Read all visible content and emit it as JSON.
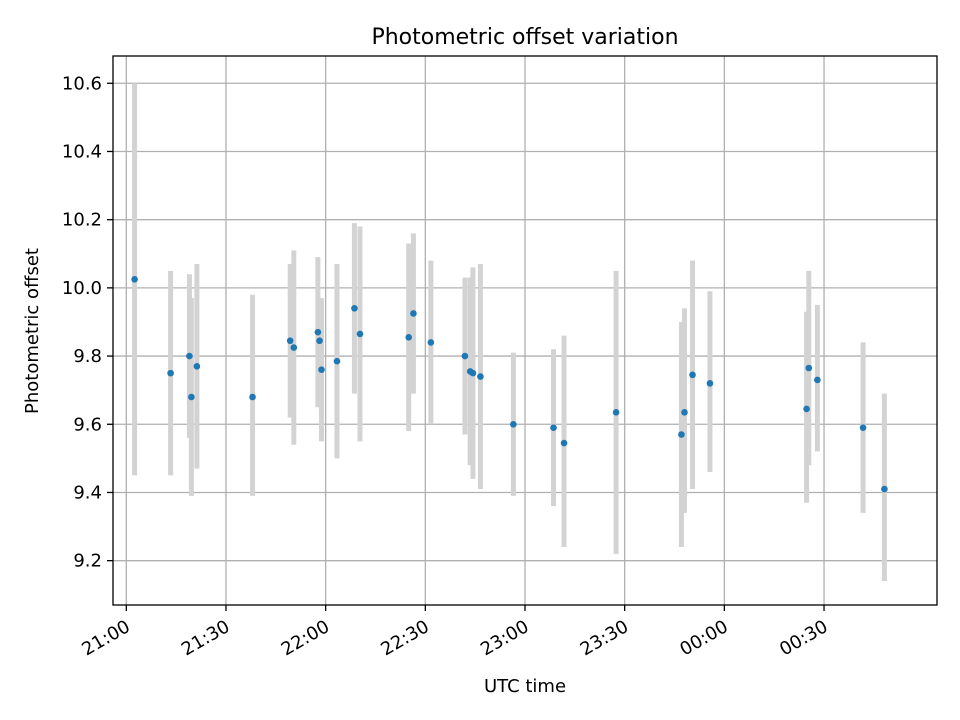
{
  "chart_data": {
    "type": "scatter",
    "title": "Photometric offset variation",
    "xlabel": "UTC time",
    "ylabel": "Photometric offset",
    "xlim": [
      "2000-01-01T20:56:00",
      "2000-01-02T01:04:00"
    ],
    "ylim": [
      9.07,
      10.68
    ],
    "grid": true,
    "x_ticks": [
      {
        "value": "2000-01-01T21:00:00",
        "label": "21:00"
      },
      {
        "value": "2000-01-01T21:30:00",
        "label": "21:30"
      },
      {
        "value": "2000-01-01T22:00:00",
        "label": "22:00"
      },
      {
        "value": "2000-01-01T22:30:00",
        "label": "22:30"
      },
      {
        "value": "2000-01-01T23:00:00",
        "label": "23:00"
      },
      {
        "value": "2000-01-01T23:30:00",
        "label": "23:30"
      },
      {
        "value": "2000-01-02T00:00:00",
        "label": "00:00"
      },
      {
        "value": "2000-01-02T00:30:00",
        "label": "00:30"
      }
    ],
    "y_ticks": [
      {
        "value": 9.2,
        "label": "9.2"
      },
      {
        "value": 9.4,
        "label": "9.4"
      },
      {
        "value": 9.6,
        "label": "9.6"
      },
      {
        "value": 9.8,
        "label": "9.8"
      },
      {
        "value": 10.0,
        "label": "10.0"
      },
      {
        "value": 10.2,
        "label": "10.2"
      },
      {
        "value": 10.4,
        "label": "10.4"
      },
      {
        "value": 10.6,
        "label": "10.6"
      }
    ],
    "colors": {
      "point": "#1f77b4",
      "errorbar": "#d3d3d3",
      "grid": "#b0b0b0"
    },
    "points": [
      {
        "x": "2000-01-01T21:02:30",
        "y": 10.025,
        "ylo": 9.45,
        "yhi": 10.6
      },
      {
        "x": "2000-01-01T21:13:20",
        "y": 9.75,
        "ylo": 9.45,
        "yhi": 10.05
      },
      {
        "x": "2000-01-01T21:19:00",
        "y": 9.8,
        "ylo": 9.56,
        "yhi": 10.04
      },
      {
        "x": "2000-01-01T21:19:35",
        "y": 9.68,
        "ylo": 9.39,
        "yhi": 9.97
      },
      {
        "x": "2000-01-01T21:21:15",
        "y": 9.77,
        "ylo": 9.47,
        "yhi": 10.07
      },
      {
        "x": "2000-01-01T21:38:00",
        "y": 9.68,
        "ylo": 9.39,
        "yhi": 9.98
      },
      {
        "x": "2000-01-01T21:49:20",
        "y": 9.845,
        "ylo": 9.62,
        "yhi": 10.07
      },
      {
        "x": "2000-01-01T21:50:25",
        "y": 9.825,
        "ylo": 9.54,
        "yhi": 10.11
      },
      {
        "x": "2000-01-01T21:57:40",
        "y": 9.87,
        "ylo": 9.65,
        "yhi": 10.09
      },
      {
        "x": "2000-01-01T21:58:10",
        "y": 9.845,
        "ylo": 9.72,
        "yhi": 9.97
      },
      {
        "x": "2000-01-01T21:58:45",
        "y": 9.76,
        "ylo": 9.55,
        "yhi": 9.97
      },
      {
        "x": "2000-01-01T22:03:25",
        "y": 9.785,
        "ylo": 9.5,
        "yhi": 10.07
      },
      {
        "x": "2000-01-01T22:08:40",
        "y": 9.94,
        "ylo": 9.69,
        "yhi": 10.19
      },
      {
        "x": "2000-01-01T22:10:20",
        "y": 9.865,
        "ylo": 9.55,
        "yhi": 10.18
      },
      {
        "x": "2000-01-01T22:25:00",
        "y": 9.855,
        "ylo": 9.58,
        "yhi": 10.13
      },
      {
        "x": "2000-01-01T22:26:25",
        "y": 9.925,
        "ylo": 9.69,
        "yhi": 10.16
      },
      {
        "x": "2000-01-01T22:31:40",
        "y": 9.84,
        "ylo": 9.6,
        "yhi": 10.08
      },
      {
        "x": "2000-01-01T22:41:55",
        "y": 9.8,
        "ylo": 9.57,
        "yhi": 10.03
      },
      {
        "x": "2000-01-01T22:43:30",
        "y": 9.755,
        "ylo": 9.48,
        "yhi": 10.03
      },
      {
        "x": "2000-01-01T22:44:20",
        "y": 9.75,
        "ylo": 9.44,
        "yhi": 10.06
      },
      {
        "x": "2000-01-01T22:46:35",
        "y": 9.74,
        "ylo": 9.41,
        "yhi": 10.07
      },
      {
        "x": "2000-01-01T22:56:30",
        "y": 9.6,
        "ylo": 9.39,
        "yhi": 9.81
      },
      {
        "x": "2000-01-01T23:08:35",
        "y": 9.59,
        "ylo": 9.36,
        "yhi": 9.82
      },
      {
        "x": "2000-01-01T23:11:45",
        "y": 9.545,
        "ylo": 9.24,
        "yhi": 9.86
      },
      {
        "x": "2000-01-01T23:27:25",
        "y": 9.635,
        "ylo": 9.22,
        "yhi": 10.05
      },
      {
        "x": "2000-01-01T23:47:05",
        "y": 9.57,
        "ylo": 9.24,
        "yhi": 9.9
      },
      {
        "x": "2000-01-01T23:48:00",
        "y": 9.635,
        "ylo": 9.34,
        "yhi": 9.94
      },
      {
        "x": "2000-01-01T23:50:25",
        "y": 9.745,
        "ylo": 9.41,
        "yhi": 10.08
      },
      {
        "x": "2000-01-01T23:55:40",
        "y": 9.72,
        "ylo": 9.46,
        "yhi": 9.99
      },
      {
        "x": "2000-01-02T00:24:45",
        "y": 9.645,
        "ylo": 9.37,
        "yhi": 9.93
      },
      {
        "x": "2000-01-02T00:25:25",
        "y": 9.765,
        "ylo": 9.48,
        "yhi": 10.05
      },
      {
        "x": "2000-01-02T00:28:00",
        "y": 9.73,
        "ylo": 9.52,
        "yhi": 9.95
      },
      {
        "x": "2000-01-02T00:41:45",
        "y": 9.59,
        "ylo": 9.34,
        "yhi": 9.84
      },
      {
        "x": "2000-01-02T00:48:10",
        "y": 9.41,
        "ylo": 9.14,
        "yhi": 9.69
      }
    ]
  }
}
